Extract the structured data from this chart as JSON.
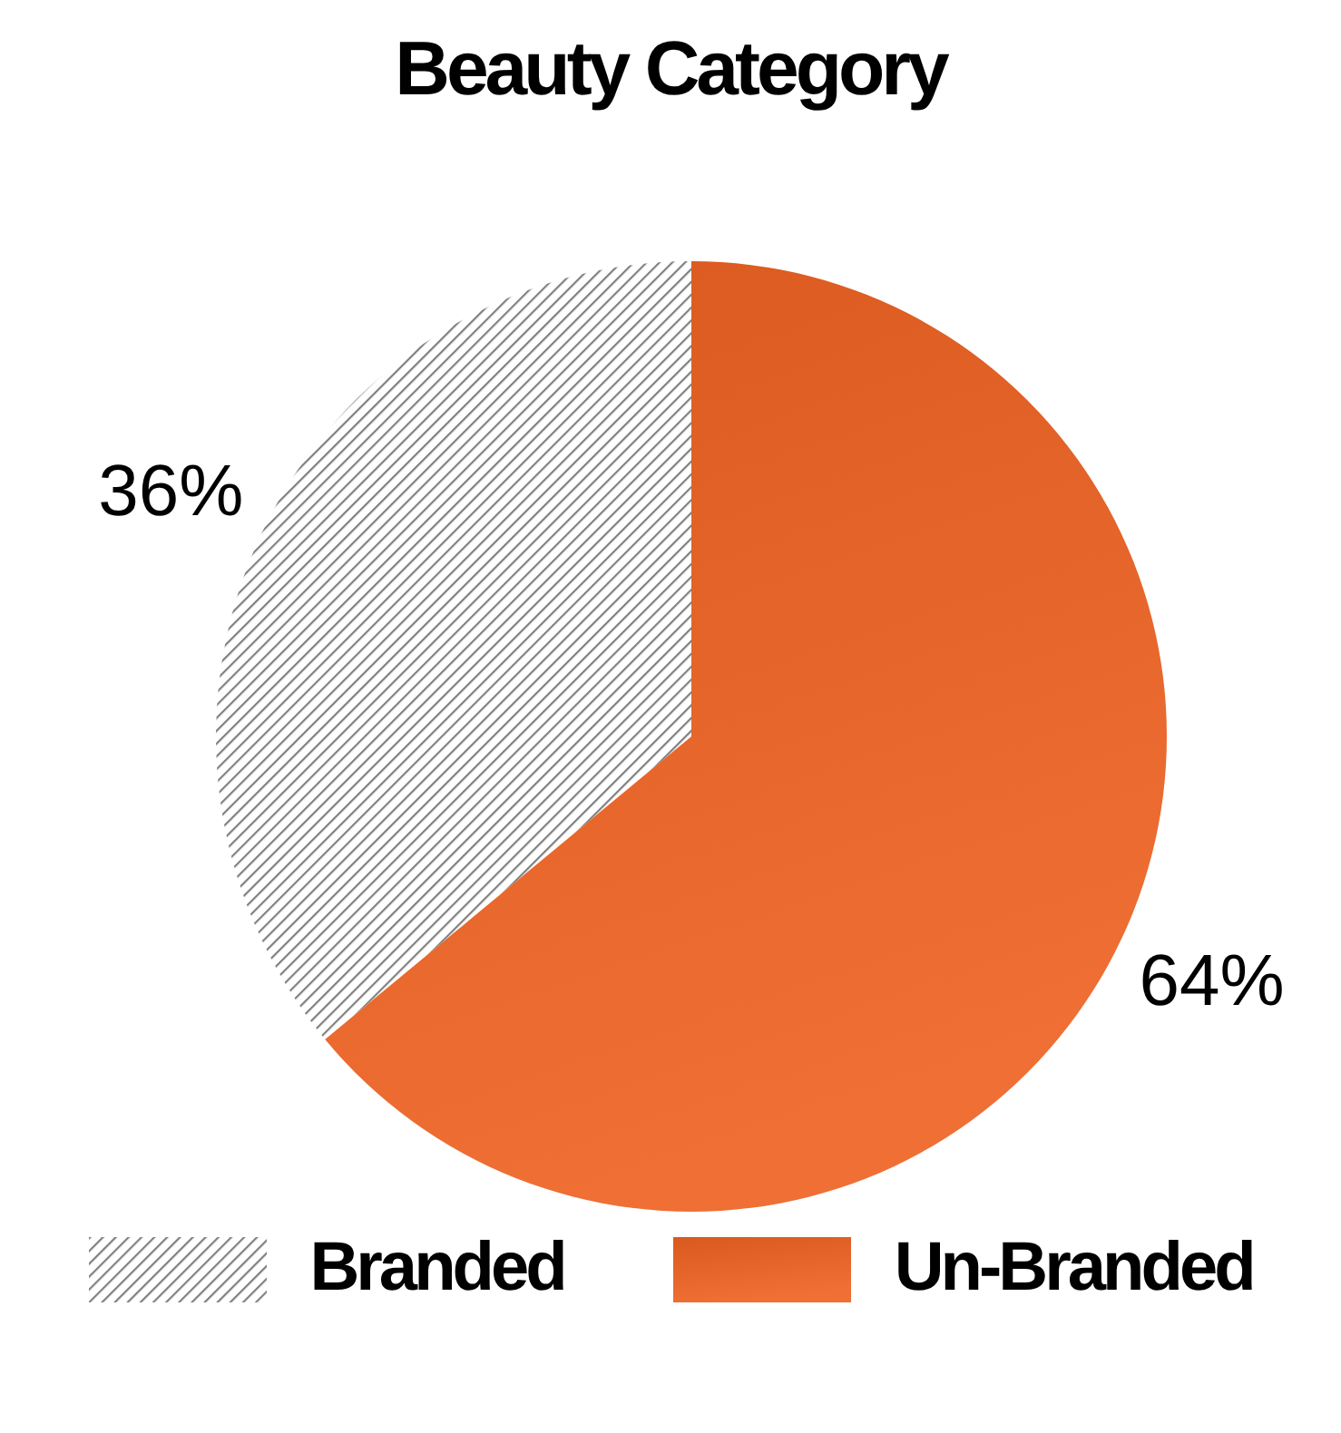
{
  "chart_data": {
    "type": "pie",
    "title": "Beauty Category",
    "categories": [
      "Branded",
      "Un-Branded"
    ],
    "values": [
      36,
      64
    ],
    "colors": [
      "#808080",
      "#e5652a"
    ],
    "legend": "bottom",
    "value_labels": [
      "36%",
      "64%"
    ]
  }
}
